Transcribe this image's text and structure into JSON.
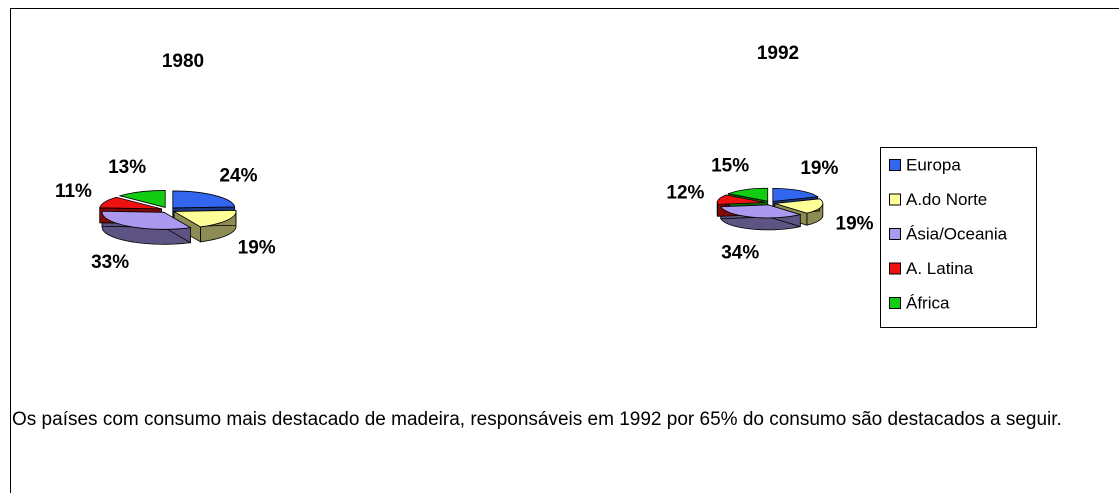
{
  "chart_data": [
    {
      "type": "pie",
      "title": "1980",
      "categories": [
        "Europa",
        "A.do Norte",
        "Ásia/Oceania",
        "A. Latina",
        "África"
      ],
      "values": [
        24,
        19,
        33,
        11,
        13
      ],
      "value_labels": [
        "24%",
        "19%",
        "33%",
        "11%",
        "13%"
      ],
      "colors": [
        "#3366ee",
        "#ffff99",
        "#aa99ee",
        "#ee1111",
        "#11cc11"
      ]
    },
    {
      "type": "pie",
      "title": "1992",
      "categories": [
        "Europa",
        "A.do Norte",
        "Ásia/Oceania",
        "A. Latina",
        "África"
      ],
      "values": [
        19,
        19,
        34,
        12,
        15
      ],
      "value_labels": [
        "19%",
        "19%",
        "34%",
        "12%",
        "15%"
      ],
      "colors": [
        "#3366ee",
        "#ffff99",
        "#aa99ee",
        "#ee1111",
        "#11cc11"
      ],
      "legend": "right"
    }
  ],
  "paragraph": "Os países com consumo mais destacado de madeira, responsáveis em 1992 por 65% do consumo são destacados a seguir."
}
